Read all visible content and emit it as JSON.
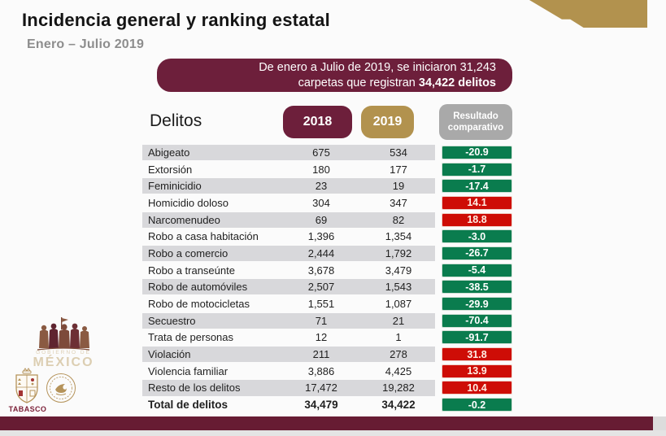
{
  "slide": {
    "title": "Incidencia general  y ranking estatal",
    "subtitle": "Enero – Julio 2019"
  },
  "banner": {
    "line1": "De enero a Julio de 2019, se iniciaron 31,243",
    "line2_regular": "carpetas que registran",
    "line2_bold": "34,422 delitos"
  },
  "table": {
    "header": {
      "label": "Delitos",
      "year_left": "2018",
      "year_right": "2019",
      "result_line1": "Resultado",
      "result_line2": "comparativo"
    },
    "rows": [
      {
        "name": "Abigeato",
        "y2018": "675",
        "y2019": "534",
        "delta": "-20.9"
      },
      {
        "name": "Extorsión",
        "y2018": "180",
        "y2019": "177",
        "delta": "-1.7"
      },
      {
        "name": "Feminicidio",
        "y2018": "23",
        "y2019": "19",
        "delta": "-17.4"
      },
      {
        "name": "Homicidio doloso",
        "y2018": "304",
        "y2019": "347",
        "delta": "14.1"
      },
      {
        "name": "Narcomenudeo",
        "y2018": "69",
        "y2019": "82",
        "delta": "18.8"
      },
      {
        "name": "Robo a casa habitación",
        "y2018": "1,396",
        "y2019": "1,354",
        "delta": "-3.0"
      },
      {
        "name": "Robo a comercio",
        "y2018": "2,444",
        "y2019": "1,792",
        "delta": "-26.7"
      },
      {
        "name": "Robo a transeúnte",
        "y2018": "3,678",
        "y2019": "3,479",
        "delta": "-5.4"
      },
      {
        "name": "Robo de automóviles",
        "y2018": "2,507",
        "y2019": "1,543",
        "delta": "-38.5"
      },
      {
        "name": "Robo de motocicletas",
        "y2018": "1,551",
        "y2019": "1,087",
        "delta": "-29.9"
      },
      {
        "name": "Secuestro",
        "y2018": "71",
        "y2019": "21",
        "delta": "-70.4"
      },
      {
        "name": "Trata de personas",
        "y2018": "12",
        "y2019": "1",
        "delta": "-91.7"
      },
      {
        "name": "Violación",
        "y2018": "211",
        "y2019": "278",
        "delta": "31.8"
      },
      {
        "name": "Violencia familiar",
        "y2018": "3,886",
        "y2019": "4,425",
        "delta": "13.9"
      },
      {
        "name": "Resto de los delitos",
        "y2018": "17,472",
        "y2019": "19,282",
        "delta": "10.4"
      },
      {
        "name": "Total de delitos",
        "y2018": "34,479",
        "y2019": "34,422",
        "delta": "-0.2",
        "emphasis": true
      }
    ]
  },
  "footer": {
    "wordmark_top": "GOBIERNO DE",
    "wordmark_bottom": "MÉXICO",
    "state_name": "TABASCO"
  },
  "colors": {
    "maroon": "#6d1f3b",
    "gold": "#b2924e",
    "badge-gray": "#a9a9a9",
    "row-gray": "#d8d8db",
    "green": "#0a7c4e",
    "red": "#ce0d06",
    "bar-maroon": "#671c33"
  }
}
